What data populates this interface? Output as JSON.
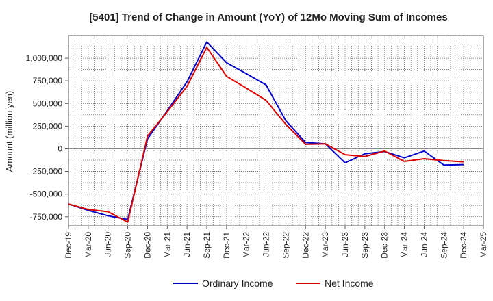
{
  "chart_data": {
    "type": "line",
    "title": "[5401]  Trend of Change in Amount (YoY) of 12Mo Moving Sum of Incomes",
    "xlabel": "",
    "ylabel": "Amount (million yen)",
    "categories": [
      "Dec-19",
      "Mar-20",
      "Jun-20",
      "Sep-20",
      "Dec-20",
      "Mar-21",
      "Jun-21",
      "Sep-21",
      "Dec-21",
      "Mar-22",
      "Jun-22",
      "Sep-22",
      "Dec-22",
      "Mar-23",
      "Jun-23",
      "Sep-23",
      "Dec-23",
      "Mar-24",
      "Jun-24",
      "Sep-24",
      "Dec-24",
      "Mar-25"
    ],
    "ylim": [
      -850000,
      1250000
    ],
    "yticks": [
      -750000,
      -500000,
      -250000,
      0,
      250000,
      500000,
      750000,
      1000000
    ],
    "ytick_labels": [
      "-750,000",
      "-500,000",
      "-250,000",
      "0",
      "250,000",
      "500,000",
      "750,000",
      "1,000,000"
    ],
    "grid": true,
    "legend_position": "bottom",
    "series": [
      {
        "name": "Ordinary Income",
        "color": "#0000cc",
        "values": [
          -610000,
          -680000,
          -740000,
          -780000,
          110000,
          420000,
          740000,
          1180000,
          950000,
          830000,
          705000,
          310000,
          70000,
          55000,
          -155000,
          -55000,
          -30000,
          -100000,
          -25000,
          -180000,
          -175000,
          null
        ]
      },
      {
        "name": "Net Income",
        "color": "#dd0000",
        "values": [
          -610000,
          -670000,
          -695000,
          -810000,
          140000,
          410000,
          690000,
          1120000,
          800000,
          670000,
          535000,
          270000,
          50000,
          55000,
          -65000,
          -85000,
          -25000,
          -140000,
          -110000,
          -130000,
          -145000,
          null
        ]
      }
    ]
  }
}
